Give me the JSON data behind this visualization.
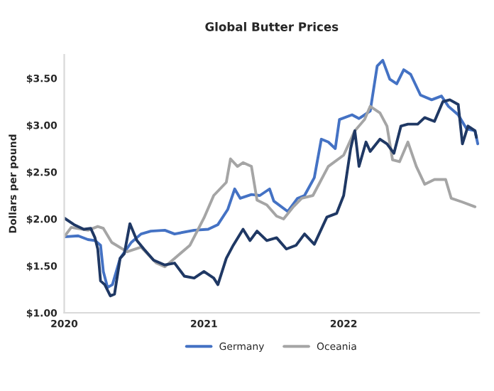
{
  "chart_data": {
    "type": "line",
    "title": "Global Butter Prices",
    "ylabel": "Dollars per pound",
    "xlim": [
      2020,
      2022.97
    ],
    "xticks": [
      2020,
      2021,
      2022
    ],
    "ylim": [
      1.0,
      3.75
    ],
    "yticks": [
      {
        "value": 1.0,
        "label": "$1.00"
      },
      {
        "value": 1.5,
        "label": "$1.50"
      },
      {
        "value": 2.0,
        "label": "$2.00"
      },
      {
        "value": 2.5,
        "label": "$2.50"
      },
      {
        "value": 3.0,
        "label": "$3.00"
      },
      {
        "value": 3.5,
        "label": "$3.50"
      }
    ],
    "grid": false,
    "legend": "bottom",
    "line_style": "solid",
    "marker": "none",
    "series": [
      {
        "name": "Germany",
        "color": "#4472c4",
        "x": [
          2020.0,
          2020.1,
          2020.17,
          2020.22,
          2020.26,
          2020.28,
          2020.31,
          2020.345,
          2020.4,
          2020.48,
          2020.55,
          2020.62,
          2020.72,
          2020.79,
          2020.93,
          2021.03,
          2021.1,
          2021.17,
          2021.22,
          2021.26,
          2021.34,
          2021.4,
          2021.47,
          2021.5,
          2021.6,
          2021.67,
          2021.72,
          2021.79,
          2021.84,
          2021.89,
          2021.94,
          2021.97,
          2022.06,
          2022.11,
          2022.19,
          2022.24,
          2022.28,
          2022.33,
          2022.38,
          2022.43,
          2022.48,
          2022.55,
          2022.63,
          2022.7,
          2022.75,
          2022.82,
          2022.88,
          2022.94,
          2022.96
        ],
        "values": [
          1.81,
          1.82,
          1.78,
          1.77,
          1.72,
          1.44,
          1.27,
          1.3,
          1.58,
          1.75,
          1.84,
          1.87,
          1.88,
          1.84,
          1.88,
          1.89,
          1.94,
          2.1,
          2.32,
          2.22,
          2.26,
          2.25,
          2.32,
          2.19,
          2.08,
          2.22,
          2.25,
          2.44,
          2.85,
          2.82,
          2.75,
          3.06,
          3.11,
          3.07,
          3.15,
          3.63,
          3.69,
          3.49,
          3.44,
          3.59,
          3.54,
          3.32,
          3.27,
          3.31,
          3.2,
          3.11,
          2.96,
          2.94,
          2.8
        ]
      },
      {
        "name": "Oceania",
        "color": "#a5a5a5",
        "x": [
          2020.0,
          2020.05,
          2020.17,
          2020.24,
          2020.28,
          2020.34,
          2020.45,
          2020.55,
          2020.66,
          2020.72,
          2020.79,
          2020.9,
          2021.0,
          2021.07,
          2021.16,
          2021.19,
          2021.24,
          2021.28,
          2021.34,
          2021.38,
          2021.45,
          2021.52,
          2021.57,
          2021.64,
          2021.7,
          2021.78,
          2021.83,
          2021.89,
          2022.0,
          2022.08,
          2022.15,
          2022.19,
          2022.26,
          2022.31,
          2022.35,
          2022.4,
          2022.46,
          2022.52,
          2022.58,
          2022.65,
          2022.73,
          2022.77,
          2022.85,
          2022.94
        ],
        "values": [
          1.81,
          1.91,
          1.88,
          1.92,
          1.9,
          1.75,
          1.65,
          1.7,
          1.53,
          1.49,
          1.58,
          1.72,
          2.01,
          2.25,
          2.39,
          2.64,
          2.56,
          2.6,
          2.56,
          2.2,
          2.15,
          2.03,
          2.0,
          2.13,
          2.22,
          2.25,
          2.39,
          2.56,
          2.68,
          2.94,
          3.06,
          3.2,
          3.13,
          2.99,
          2.63,
          2.61,
          2.82,
          2.56,
          2.37,
          2.42,
          2.42,
          2.22,
          2.18,
          2.13
        ]
      },
      {
        "color": "#1f3864",
        "x": [
          2020.0,
          2020.07,
          2020.14,
          2020.19,
          2020.22,
          2020.24,
          2020.26,
          2020.29,
          2020.33,
          2020.36,
          2020.4,
          2020.43,
          2020.47,
          2020.52,
          2020.57,
          2020.64,
          2020.72,
          2020.79,
          2020.86,
          2020.93,
          2021.0,
          2021.07,
          2021.1,
          2021.16,
          2021.21,
          2021.28,
          2021.33,
          2021.38,
          2021.45,
          2021.52,
          2021.59,
          2021.66,
          2021.72,
          2021.79,
          2021.88,
          2021.95,
          2022.0,
          2022.05,
          2022.08,
          2022.11,
          2022.16,
          2022.19,
          2022.26,
          2022.31,
          2022.36,
          2022.41,
          2022.46,
          2022.53,
          2022.58,
          2022.65,
          2022.71,
          2022.76,
          2022.82,
          2022.85,
          2022.89,
          2022.94,
          2022.95
        ],
        "values": [
          2.01,
          1.94,
          1.89,
          1.9,
          1.8,
          1.68,
          1.34,
          1.3,
          1.18,
          1.2,
          1.58,
          1.63,
          1.95,
          1.77,
          1.68,
          1.56,
          1.51,
          1.53,
          1.39,
          1.37,
          1.44,
          1.37,
          1.3,
          1.58,
          1.72,
          1.89,
          1.77,
          1.87,
          1.77,
          1.8,
          1.68,
          1.72,
          1.84,
          1.73,
          2.02,
          2.06,
          2.25,
          2.75,
          2.94,
          2.56,
          2.82,
          2.72,
          2.85,
          2.8,
          2.7,
          2.99,
          3.01,
          3.01,
          3.08,
          3.04,
          3.25,
          3.27,
          3.22,
          2.8,
          2.99,
          2.94,
          2.87
        ]
      }
    ]
  }
}
